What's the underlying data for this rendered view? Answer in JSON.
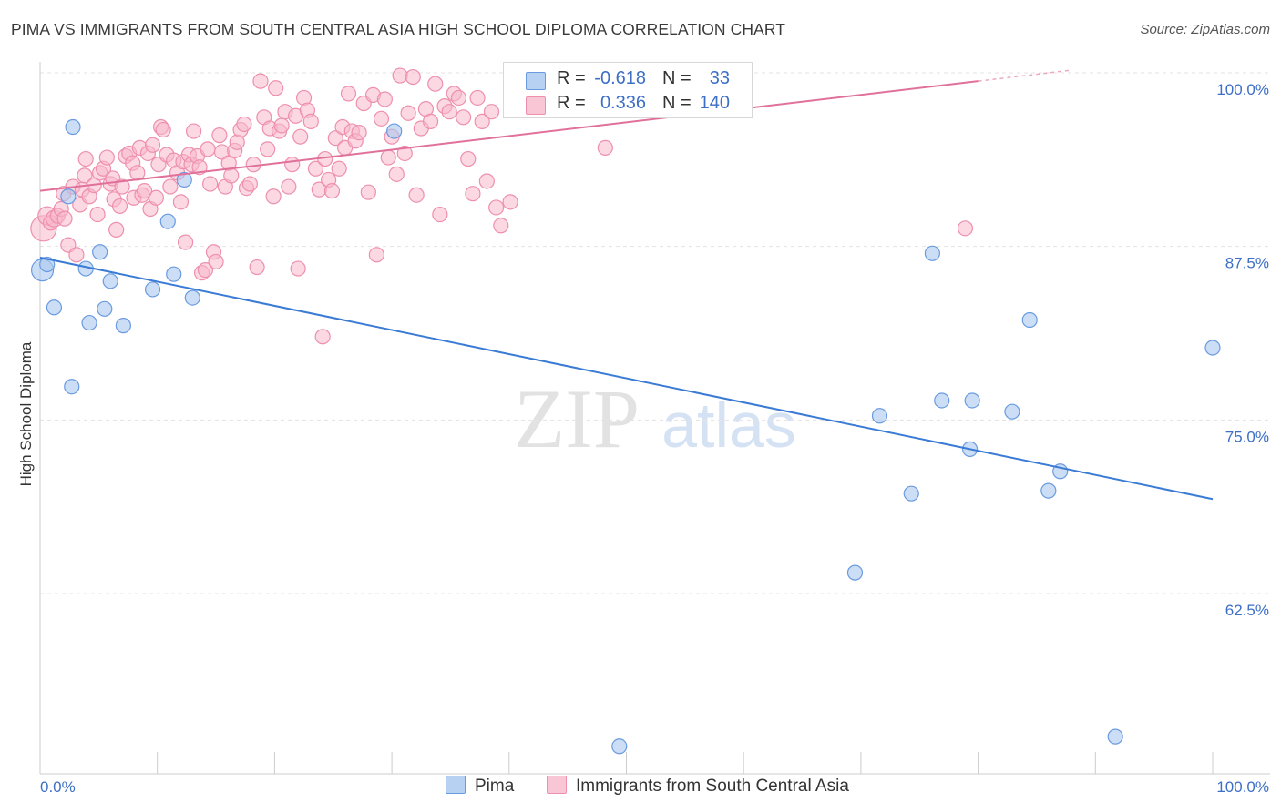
{
  "header": {
    "title": "PIMA VS IMMIGRANTS FROM SOUTH CENTRAL ASIA HIGH SCHOOL DIPLOMA CORRELATION CHART",
    "source": "Source: ZipAtlas.com"
  },
  "watermark": {
    "zip": "ZIP",
    "atlas": "atlas"
  },
  "legend": {
    "rows": [
      {
        "r_label": "R =",
        "r_value": "-0.618",
        "n_label": "N =",
        "n_value": "33"
      },
      {
        "r_label": "R =",
        "r_value": "0.336",
        "n_label": "N =",
        "n_value": "140"
      }
    ]
  },
  "colors": {
    "pima_fill": "#aac8ee",
    "pima_stroke": "#6a9be0",
    "pima_line": "#3a7bd5",
    "imm_fill": "#f7b8cb",
    "imm_stroke": "#ee8fae",
    "imm_line": "#e0719a",
    "tick_label": "#3d6fc6",
    "grid": "#e3e3e3"
  },
  "chart_data": {
    "type": "scatter",
    "title": "PIMA VS IMMIGRANTS FROM SOUTH CENTRAL ASIA HIGH SCHOOL DIPLOMA CORRELATION CHART",
    "xlabel": "",
    "ylabel": "High School Diploma",
    "xlim": [
      0,
      100
    ],
    "ylim": [
      50.5,
      101.5
    ],
    "x_tick_labels": [
      "0.0%",
      "100.0%"
    ],
    "y_ticks": [
      {
        "value": 100.0,
        "label": "100.0%"
      },
      {
        "value": 87.5,
        "label": "87.5%"
      },
      {
        "value": 75.0,
        "label": "75.0%"
      },
      {
        "value": 62.5,
        "label": "62.5%"
      }
    ],
    "grid": true,
    "legend_position": "top-center",
    "series": [
      {
        "name": "Pima",
        "R": -0.618,
        "N": 33,
        "trend": {
          "x": [
            0,
            100
          ],
          "y": [
            86.7,
            69.3
          ]
        },
        "points": [
          [
            0.2,
            85.8,
            22
          ],
          [
            0.6,
            86.2,
            14
          ],
          [
            1.2,
            83.1,
            14
          ],
          [
            2.7,
            77.4,
            14
          ],
          [
            2.4,
            91.1,
            14
          ],
          [
            2.8,
            96.1,
            14
          ],
          [
            3.9,
            85.9,
            14
          ],
          [
            4.2,
            82.0,
            14
          ],
          [
            5.1,
            87.1,
            14
          ],
          [
            5.5,
            83.0,
            14
          ],
          [
            6.0,
            85.0,
            14
          ],
          [
            7.1,
            81.8,
            14
          ],
          [
            9.6,
            84.4,
            14
          ],
          [
            10.9,
            89.3,
            14
          ],
          [
            11.4,
            85.5,
            14
          ],
          [
            12.3,
            92.3,
            14
          ],
          [
            13.0,
            83.8,
            14
          ],
          [
            30.2,
            95.8,
            14
          ],
          [
            49.4,
            51.5,
            14
          ],
          [
            69.5,
            64.0,
            14
          ],
          [
            71.6,
            75.3,
            14
          ],
          [
            74.3,
            69.7,
            14
          ],
          [
            76.1,
            87.0,
            14
          ],
          [
            76.9,
            76.4,
            14
          ],
          [
            79.3,
            72.9,
            14
          ],
          [
            79.5,
            76.4,
            14
          ],
          [
            82.9,
            75.6,
            14
          ],
          [
            84.4,
            82.2,
            14
          ],
          [
            86.0,
            69.9,
            14
          ],
          [
            87.0,
            71.3,
            14
          ],
          [
            91.7,
            52.2,
            14
          ],
          [
            100.0,
            80.2,
            14
          ]
        ]
      },
      {
        "name": "Immigrants from South Central Asia",
        "R": 0.336,
        "N": 140,
        "trend": {
          "x": [
            0,
            80
          ],
          "y": [
            91.5,
            99.4
          ]
        },
        "trend_dashed": {
          "x": [
            80,
            88
          ],
          "y": [
            99.4,
            100.2
          ]
        },
        "points": [
          [
            0.3,
            88.8,
            26
          ],
          [
            0.6,
            89.7,
            18
          ],
          [
            0.9,
            89.2,
            14
          ],
          [
            1.2,
            89.5,
            16
          ],
          [
            1.5,
            89.7,
            14
          ],
          [
            1.8,
            90.2,
            14
          ],
          [
            2.0,
            91.3,
            14
          ],
          [
            2.1,
            89.5,
            14
          ],
          [
            2.4,
            87.6,
            14
          ],
          [
            2.8,
            91.8,
            14
          ],
          [
            3.1,
            86.9,
            14
          ],
          [
            3.4,
            90.5,
            14
          ],
          [
            3.6,
            91.6,
            14
          ],
          [
            3.8,
            92.6,
            14
          ],
          [
            3.9,
            93.8,
            14
          ],
          [
            4.2,
            91.1,
            14
          ],
          [
            4.6,
            91.9,
            14
          ],
          [
            4.9,
            89.8,
            14
          ],
          [
            5.1,
            92.8,
            14
          ],
          [
            5.4,
            93.1,
            14
          ],
          [
            5.7,
            93.9,
            14
          ],
          [
            6.0,
            92.0,
            14
          ],
          [
            6.2,
            92.4,
            14
          ],
          [
            6.3,
            90.9,
            14
          ],
          [
            6.5,
            88.7,
            14
          ],
          [
            6.8,
            90.4,
            14
          ],
          [
            7.0,
            91.8,
            14
          ],
          [
            7.3,
            94.0,
            14
          ],
          [
            7.6,
            94.2,
            14
          ],
          [
            7.9,
            93.5,
            14
          ],
          [
            8.0,
            91.0,
            14
          ],
          [
            8.3,
            92.8,
            14
          ],
          [
            8.5,
            94.6,
            14
          ],
          [
            8.7,
            91.2,
            14
          ],
          [
            8.9,
            91.5,
            14
          ],
          [
            9.2,
            94.2,
            14
          ],
          [
            9.4,
            90.2,
            14
          ],
          [
            9.6,
            94.8,
            14
          ],
          [
            9.9,
            91.0,
            14
          ],
          [
            10.1,
            93.4,
            14
          ],
          [
            10.3,
            96.1,
            14
          ],
          [
            10.5,
            95.9,
            14
          ],
          [
            10.8,
            94.1,
            14
          ],
          [
            11.1,
            91.8,
            14
          ],
          [
            11.4,
            93.7,
            14
          ],
          [
            11.7,
            92.8,
            14
          ],
          [
            12.0,
            90.7,
            14
          ],
          [
            12.2,
            93.6,
            14
          ],
          [
            12.4,
            87.8,
            14
          ],
          [
            12.7,
            94.1,
            14
          ],
          [
            12.9,
            93.4,
            14
          ],
          [
            13.1,
            95.8,
            14
          ],
          [
            13.4,
            94.0,
            14
          ],
          [
            13.6,
            93.2,
            14
          ],
          [
            13.8,
            85.6,
            14
          ],
          [
            14.1,
            85.8,
            14
          ],
          [
            14.3,
            94.5,
            14
          ],
          [
            14.5,
            92.0,
            14
          ],
          [
            14.8,
            87.1,
            14
          ],
          [
            15.0,
            86.4,
            14
          ],
          [
            15.3,
            95.5,
            14
          ],
          [
            15.5,
            94.3,
            14
          ],
          [
            15.8,
            91.8,
            14
          ],
          [
            16.1,
            93.5,
            14
          ],
          [
            16.3,
            92.6,
            14
          ],
          [
            16.6,
            94.4,
            14
          ],
          [
            16.8,
            95.0,
            14
          ],
          [
            17.1,
            95.9,
            14
          ],
          [
            17.4,
            96.3,
            14
          ],
          [
            17.6,
            91.7,
            14
          ],
          [
            17.9,
            92.0,
            14
          ],
          [
            18.2,
            93.4,
            14
          ],
          [
            18.5,
            86.0,
            14
          ],
          [
            18.8,
            99.4,
            14
          ],
          [
            19.1,
            96.8,
            14
          ],
          [
            19.4,
            94.5,
            14
          ],
          [
            19.6,
            96.0,
            14
          ],
          [
            19.9,
            91.1,
            14
          ],
          [
            20.1,
            98.9,
            14
          ],
          [
            20.4,
            95.8,
            14
          ],
          [
            20.6,
            96.2,
            14
          ],
          [
            20.9,
            97.2,
            14
          ],
          [
            21.2,
            91.8,
            14
          ],
          [
            21.5,
            93.4,
            14
          ],
          [
            21.8,
            96.9,
            14
          ],
          [
            22.0,
            85.9,
            14
          ],
          [
            22.2,
            95.4,
            14
          ],
          [
            22.5,
            98.2,
            14
          ],
          [
            22.8,
            97.3,
            14
          ],
          [
            23.1,
            96.5,
            14
          ],
          [
            23.5,
            93.1,
            14
          ],
          [
            23.8,
            91.6,
            14
          ],
          [
            24.1,
            81.0,
            14
          ],
          [
            24.3,
            93.8,
            14
          ],
          [
            24.6,
            92.3,
            14
          ],
          [
            24.9,
            91.5,
            14
          ],
          [
            25.2,
            95.3,
            14
          ],
          [
            25.5,
            93.1,
            14
          ],
          [
            25.8,
            96.1,
            14
          ],
          [
            26.0,
            94.6,
            14
          ],
          [
            26.3,
            98.5,
            14
          ],
          [
            26.6,
            95.8,
            14
          ],
          [
            26.9,
            95.1,
            14
          ],
          [
            27.2,
            95.7,
            14
          ],
          [
            27.6,
            97.8,
            14
          ],
          [
            28.0,
            91.4,
            14
          ],
          [
            28.4,
            98.4,
            14
          ],
          [
            28.7,
            86.9,
            14
          ],
          [
            29.1,
            96.7,
            14
          ],
          [
            29.4,
            98.1,
            14
          ],
          [
            29.7,
            93.9,
            14
          ],
          [
            30.0,
            95.4,
            14
          ],
          [
            30.4,
            92.7,
            14
          ],
          [
            30.7,
            99.8,
            14
          ],
          [
            31.1,
            94.2,
            14
          ],
          [
            31.4,
            97.1,
            14
          ],
          [
            31.8,
            99.7,
            14
          ],
          [
            32.1,
            91.2,
            14
          ],
          [
            32.5,
            96.0,
            14
          ],
          [
            32.9,
            97.4,
            14
          ],
          [
            33.3,
            96.5,
            14
          ],
          [
            33.7,
            99.2,
            14
          ],
          [
            34.1,
            89.8,
            14
          ],
          [
            34.5,
            97.6,
            14
          ],
          [
            34.9,
            97.2,
            14
          ],
          [
            35.3,
            98.5,
            14
          ],
          [
            35.7,
            98.2,
            14
          ],
          [
            36.1,
            96.8,
            14
          ],
          [
            36.5,
            93.8,
            14
          ],
          [
            36.9,
            91.3,
            14
          ],
          [
            37.3,
            98.2,
            14
          ],
          [
            37.7,
            96.5,
            14
          ],
          [
            38.1,
            92.2,
            14
          ],
          [
            38.5,
            97.2,
            14
          ],
          [
            38.9,
            90.3,
            14
          ],
          [
            39.3,
            89.0,
            14
          ],
          [
            40.1,
            90.7,
            14
          ],
          [
            48.2,
            94.6,
            14
          ],
          [
            78.9,
            88.8,
            14
          ]
        ]
      }
    ]
  }
}
